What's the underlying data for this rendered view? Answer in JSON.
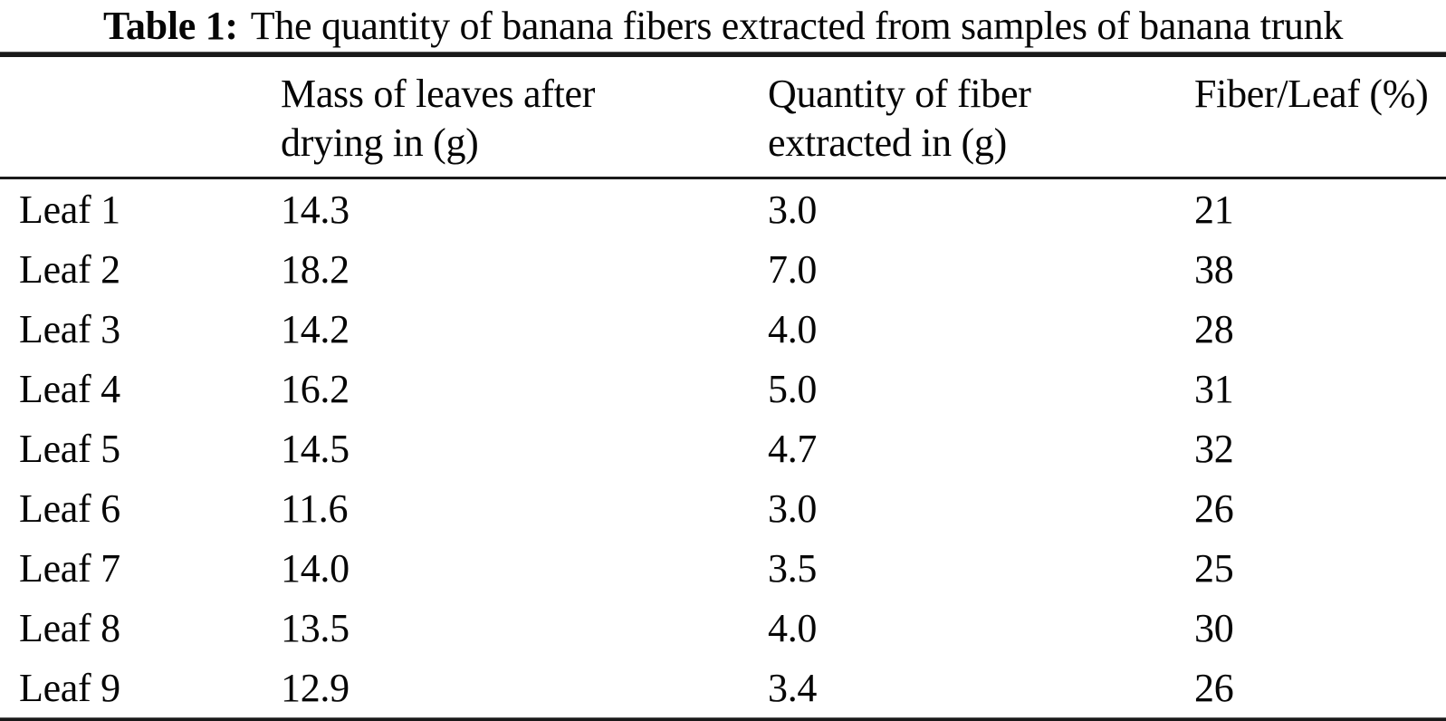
{
  "caption": {
    "label": "Table 1:",
    "text": "The quantity of banana fibers extracted from samples of banana trunk"
  },
  "table": {
    "columns": [
      {
        "line1": "",
        "line2": ""
      },
      {
        "line1": "Mass of leaves after",
        "line2": "drying in (g)"
      },
      {
        "line1": "Quantity of fiber",
        "line2": "extracted in (g)"
      },
      {
        "line1": "Fiber/Leaf (%)",
        "line2": ""
      }
    ],
    "rows": [
      {
        "label": "Leaf 1",
        "mass": "14.3",
        "fiber": "3.0",
        "percent": "21"
      },
      {
        "label": "Leaf 2",
        "mass": "18.2",
        "fiber": "7.0",
        "percent": "38"
      },
      {
        "label": "Leaf 3",
        "mass": "14.2",
        "fiber": "4.0",
        "percent": "28"
      },
      {
        "label": "Leaf 4",
        "mass": "16.2",
        "fiber": "5.0",
        "percent": "31"
      },
      {
        "label": "Leaf 5",
        "mass": "14.5",
        "fiber": "4.7",
        "percent": "32"
      },
      {
        "label": "Leaf 6",
        "mass": "11.6",
        "fiber": "3.0",
        "percent": "26"
      },
      {
        "label": "Leaf 7",
        "mass": "14.0",
        "fiber": "3.5",
        "percent": "25"
      },
      {
        "label": "Leaf 8",
        "mass": "13.5",
        "fiber": "4.0",
        "percent": "30"
      },
      {
        "label": "Leaf 9",
        "mass": "12.9",
        "fiber": "3.4",
        "percent": "26"
      }
    ]
  },
  "colors": {
    "text": "#060606",
    "rule": "#1a1a1a",
    "background": "#ffffff"
  },
  "chart_data": {
    "type": "table",
    "title": "Table 1: The quantity of banana fibers extracted from samples of banana trunk",
    "categories": [
      "Leaf 1",
      "Leaf 2",
      "Leaf 3",
      "Leaf 4",
      "Leaf 5",
      "Leaf 6",
      "Leaf 7",
      "Leaf 8",
      "Leaf 9"
    ],
    "series": [
      {
        "name": "Mass of leaves after drying in (g)",
        "values": [
          14.3,
          18.2,
          14.2,
          16.2,
          14.5,
          11.6,
          14.0,
          13.5,
          12.9
        ]
      },
      {
        "name": "Quantity of fiber extracted in (g)",
        "values": [
          3.0,
          7.0,
          4.0,
          5.0,
          4.7,
          3.0,
          3.5,
          4.0,
          3.4
        ]
      },
      {
        "name": "Fiber/Leaf (%)",
        "values": [
          21,
          38,
          28,
          31,
          32,
          26,
          25,
          30,
          26
        ]
      }
    ]
  }
}
